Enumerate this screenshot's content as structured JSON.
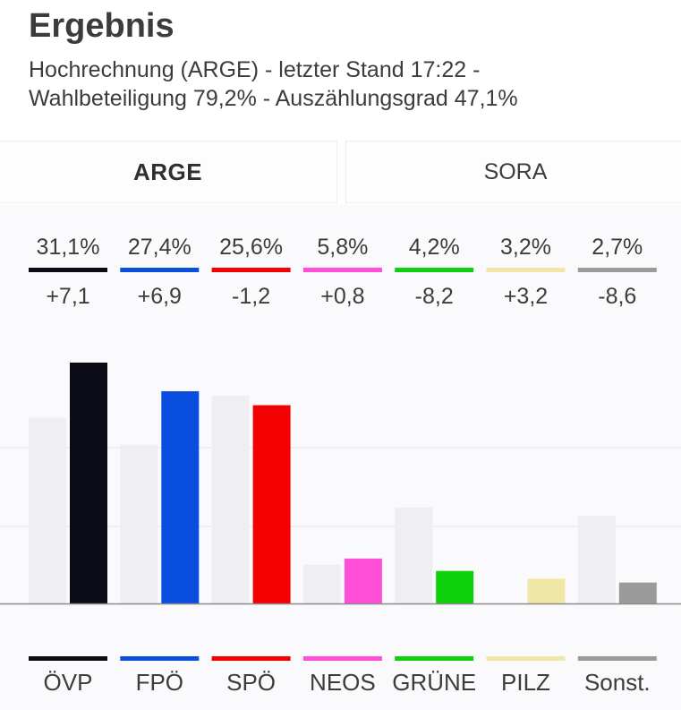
{
  "header": {
    "title": "Ergebnis",
    "subtitle_line1": "Hochrechnung (ARGE) - letzter Stand 17:22 -",
    "subtitle_line2": "Wahlbeteiligung 79,2% - Auszählungsgrad 47,1%"
  },
  "tabs": [
    {
      "label": "ARGE",
      "active": true
    },
    {
      "label": "SORA",
      "active": false
    }
  ],
  "colors": {
    "previous_bar": "#efeef2",
    "grid": "#e4e4e8",
    "baseline": "#8a8a8a"
  },
  "chart_data": {
    "type": "bar",
    "categories": [
      "ÖVP",
      "FPÖ",
      "SPÖ",
      "NEOS",
      "GRÜNE",
      "PILZ",
      "Sonst."
    ],
    "percent_labels": [
      "31,1%",
      "27,4%",
      "25,6%",
      "5,8%",
      "4,2%",
      "3,2%",
      "2,7%"
    ],
    "change_labels": [
      "+7,1",
      "+6,9",
      "-1,2",
      "+0,8",
      "-8,2",
      "+3,2",
      "-8,6"
    ],
    "series": [
      {
        "values": [
          24.0,
          20.5,
          26.8,
          5.0,
          12.4,
          0,
          11.3
        ]
      },
      {
        "values": [
          31.1,
          27.4,
          25.6,
          5.8,
          4.2,
          3.2,
          2.7
        ]
      }
    ],
    "colors": [
      "#0a0b14",
      "#0a4ee0",
      "#f50000",
      "#ff4fd8",
      "#0dd10d",
      "#f0e6a6",
      "#9b9b9b"
    ],
    "ylim": [
      0,
      31.1
    ],
    "grid": true
  }
}
